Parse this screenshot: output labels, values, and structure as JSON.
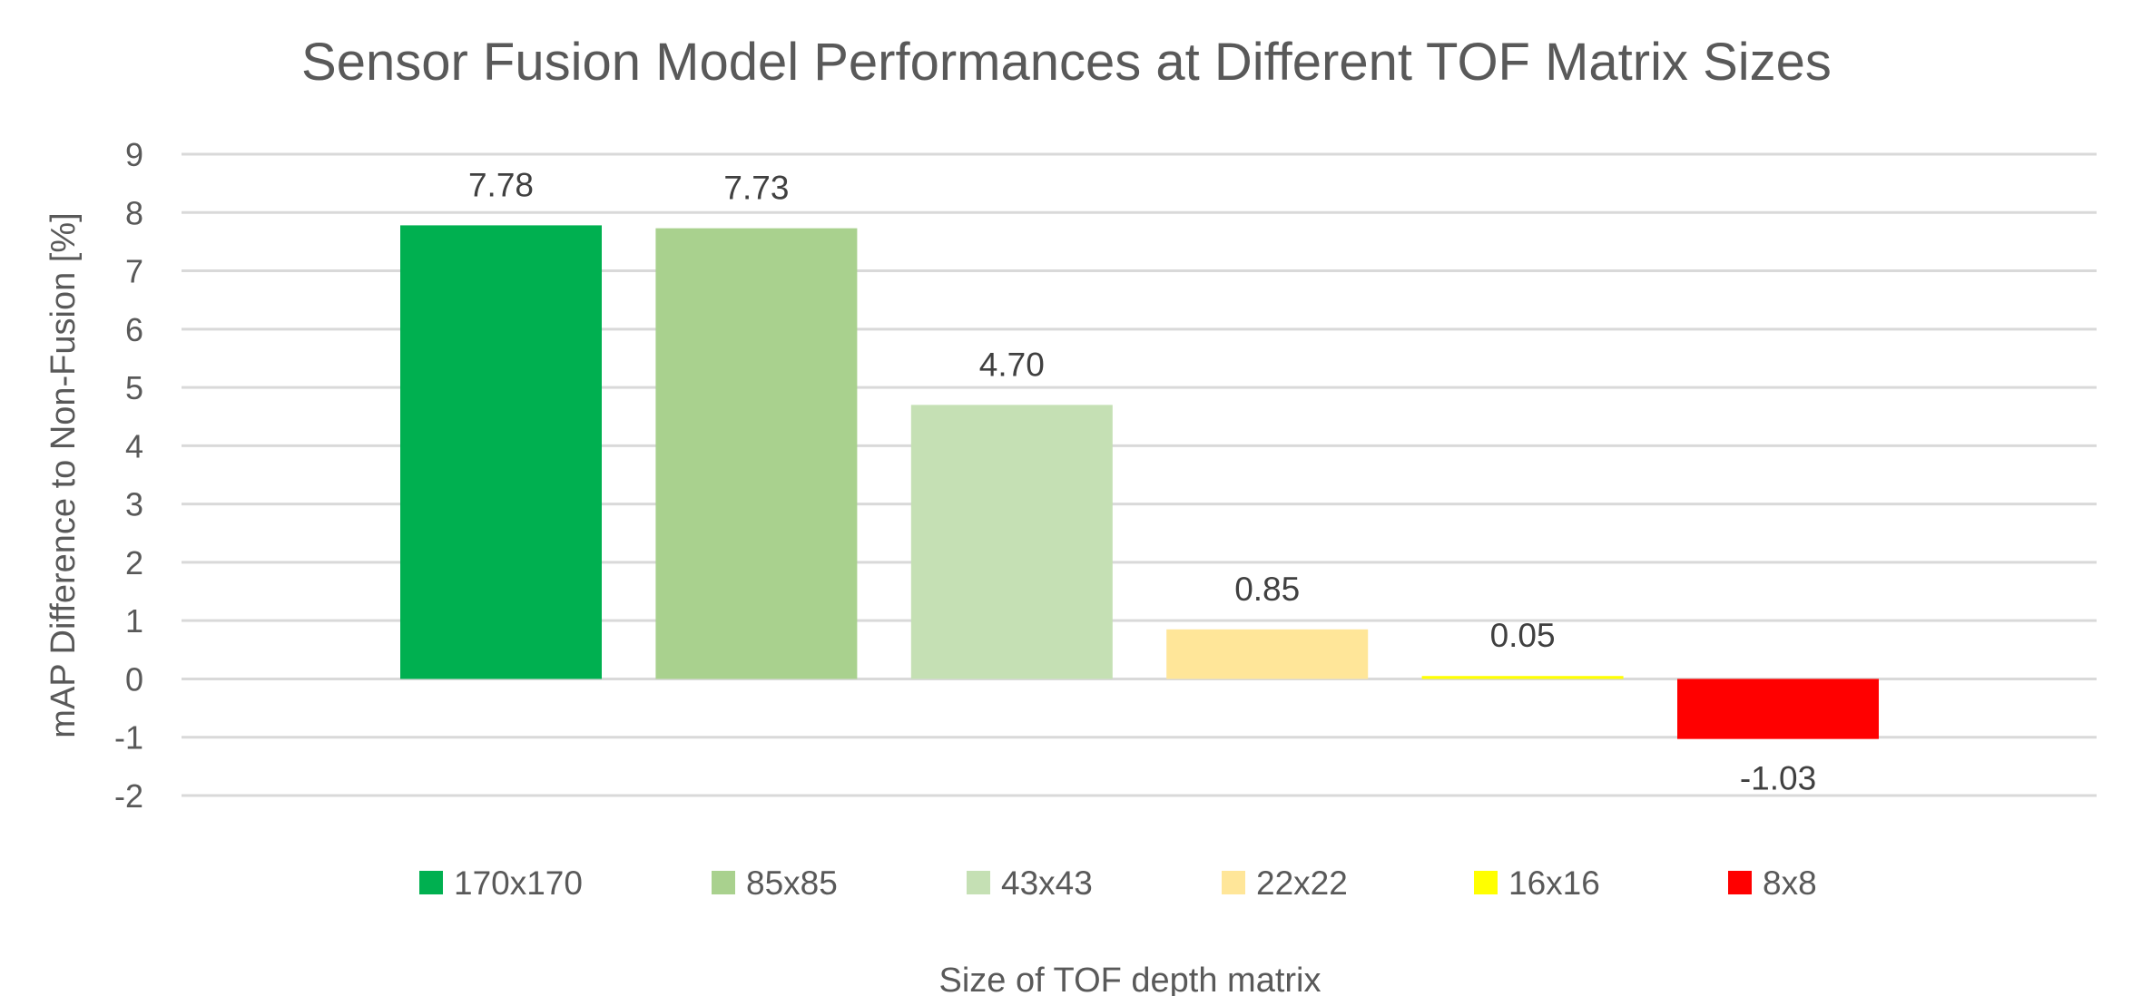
{
  "chart_data": {
    "type": "bar",
    "title": "Sensor Fusion Model Performances at Different TOF Matrix Sizes",
    "xlabel": "Size of TOF depth matrix",
    "ylabel": "mAP Difference to Non-Fusion [%]",
    "ylim": [
      -2,
      9
    ],
    "yticks": [
      "9",
      "8",
      "7",
      "6",
      "5",
      "4",
      "3",
      "2",
      "1",
      "0",
      "-1",
      "-2"
    ],
    "grid": true,
    "legend_position": "bottom",
    "series": [
      {
        "name": "170x170",
        "value": 7.78,
        "label": "7.78",
        "color": "#00b050"
      },
      {
        "name": "85x85",
        "value": 7.73,
        "label": "7.73",
        "color": "#a9d18e"
      },
      {
        "name": "43x43",
        "value": 4.7,
        "label": "4.70",
        "color": "#c5e0b4"
      },
      {
        "name": "22x22",
        "value": 0.85,
        "label": "0.85",
        "color": "#ffe699"
      },
      {
        "name": "16x16",
        "value": 0.05,
        "label": "0.05",
        "color": "#ffff00"
      },
      {
        "name": "8x8",
        "value": -1.03,
        "label": "-1.03",
        "color": "#ff0000"
      }
    ]
  }
}
